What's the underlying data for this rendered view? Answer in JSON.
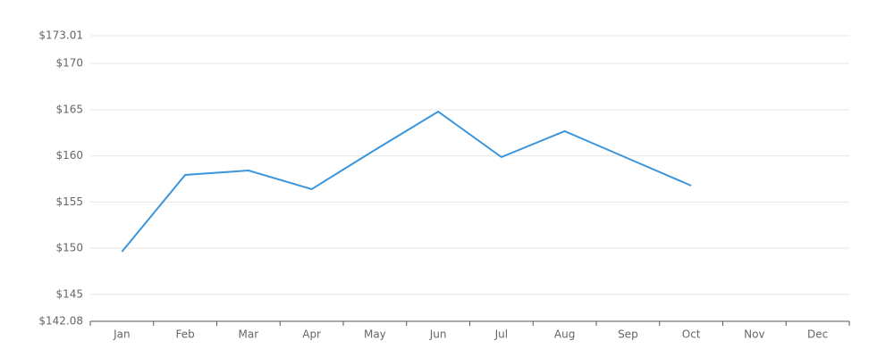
{
  "chart_data": {
    "type": "line",
    "categories": [
      "Jan",
      "Feb",
      "Mar",
      "Apr",
      "May",
      "Jun",
      "Jul",
      "Aug",
      "Sep",
      "Oct",
      "Nov",
      "Dec"
    ],
    "series": [
      {
        "color": "#3a95dc",
        "values": [
          149.62,
          157.93,
          158.41,
          156.39,
          160.64,
          164.79,
          159.86,
          162.67,
          159.72,
          156.77,
          null,
          null
        ]
      }
    ],
    "ylim": [
      142.08,
      173.01
    ],
    "yticks": [
      {
        "value": 142.08,
        "label": "$142.08"
      },
      {
        "value": 145,
        "label": "$145"
      },
      {
        "value": 150,
        "label": "$150"
      },
      {
        "value": 155,
        "label": "$155"
      },
      {
        "value": 160,
        "label": "$160"
      },
      {
        "value": 165,
        "label": "$165"
      },
      {
        "value": 170,
        "label": "$170"
      },
      {
        "value": 173.01,
        "label": "$173.01"
      }
    ],
    "grid": true
  }
}
